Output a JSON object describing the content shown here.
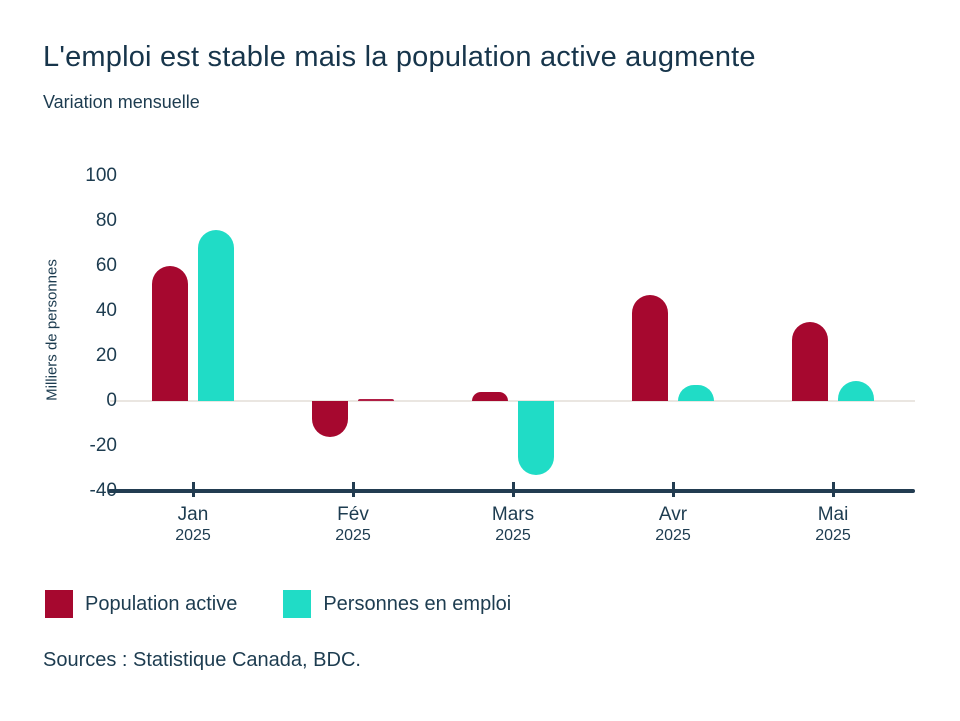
{
  "chart_data": {
    "type": "bar",
    "title": "L'emploi est stable mais la population active augmente",
    "subtitle": "Variation mensuelle",
    "ylabel": "Milliers de personnes",
    "ylim": [
      -40,
      100
    ],
    "y_ticks": [
      100,
      80,
      60,
      40,
      20,
      0,
      -20,
      -40
    ],
    "grid": "zero-line-only",
    "legend_position": "bottom",
    "categories": [
      "Jan 2025",
      "Fév 2025",
      "Mars 2025",
      "Avr 2025",
      "Mai 2025"
    ],
    "series": [
      {
        "name": "Population active",
        "color": "#a6082f",
        "values": [
          60,
          -16,
          4,
          47,
          35
        ]
      },
      {
        "name": "Personnes en emploi",
        "color": "#20dcc6",
        "values": [
          76,
          1,
          -33,
          7,
          9
        ],
        "point_color_overrides": {
          "1": "#b01e45"
        }
      }
    ]
  },
  "footer": {
    "sources": "Sources : Statistique Canada, BDC."
  },
  "colors": {
    "text": "#1d3c50",
    "axis": "#223c51",
    "zero_line": "#eae6e1",
    "background": "#ffffff"
  }
}
